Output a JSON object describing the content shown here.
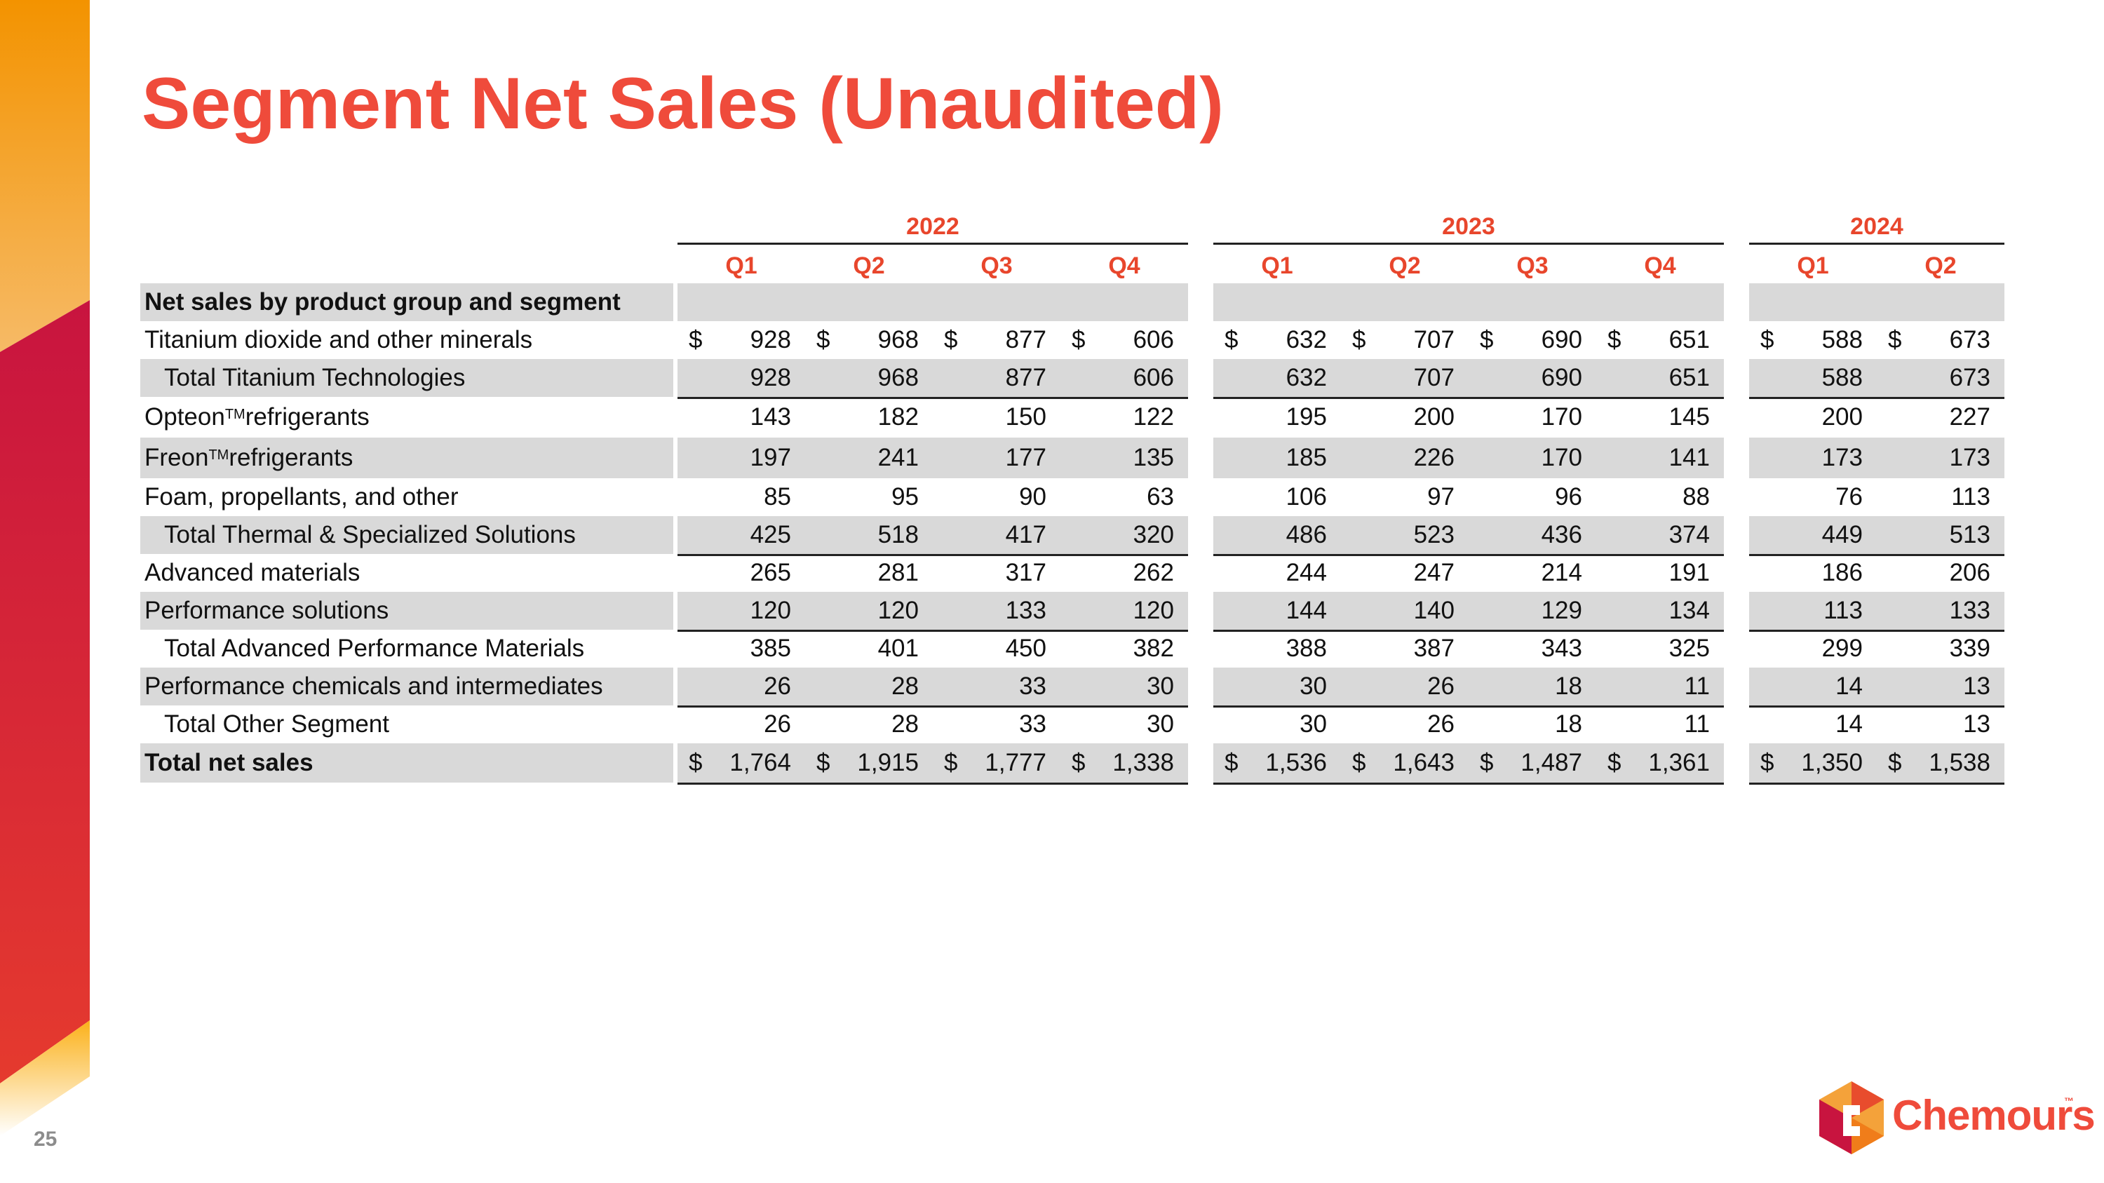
{
  "page": {
    "title": "Segment Net Sales (Unaudited)",
    "page_number": "25"
  },
  "brand": {
    "logo_text": "Chemours",
    "logo_tm": "™",
    "accent_color": "#ef4b3b",
    "icon": "chemours-hexagon-logo"
  },
  "table": {
    "years": [
      {
        "label": "2022",
        "quarters": [
          "Q1",
          "Q2",
          "Q3",
          "Q4"
        ]
      },
      {
        "label": "2023",
        "quarters": [
          "Q1",
          "Q2",
          "Q3",
          "Q4"
        ]
      },
      {
        "label": "2024",
        "quarters": [
          "Q1",
          "Q2"
        ]
      }
    ],
    "currency_symbol": "$",
    "rows": [
      {
        "label": "Net sales by product group and segment",
        "tm": "",
        "label_suffix": "",
        "values": []
      },
      {
        "label": "Titanium dioxide and other minerals",
        "tm": "",
        "label_suffix": "",
        "values": [
          "928",
          "968",
          "877",
          "606",
          "632",
          "707",
          "690",
          "651",
          "588",
          "673"
        ]
      },
      {
        "label": "Total Titanium Technologies",
        "tm": "",
        "label_suffix": "",
        "values": [
          "928",
          "968",
          "877",
          "606",
          "632",
          "707",
          "690",
          "651",
          "588",
          "673"
        ]
      },
      {
        "label": "Opteon",
        "tm": "TM",
        "label_suffix": " refrigerants",
        "values": [
          "143",
          "182",
          "150",
          "122",
          "195",
          "200",
          "170",
          "145",
          "200",
          "227"
        ]
      },
      {
        "label": "Freon",
        "tm": "TM",
        "label_suffix": " refrigerants",
        "values": [
          "197",
          "241",
          "177",
          "135",
          "185",
          "226",
          "170",
          "141",
          "173",
          "173"
        ]
      },
      {
        "label": "Foam, propellants, and other",
        "tm": "",
        "label_suffix": "",
        "values": [
          "85",
          "95",
          "90",
          "63",
          "106",
          "97",
          "96",
          "88",
          "76",
          "113"
        ]
      },
      {
        "label": "Total Thermal & Specialized Solutions",
        "tm": "",
        "label_suffix": "",
        "values": [
          "425",
          "518",
          "417",
          "320",
          "486",
          "523",
          "436",
          "374",
          "449",
          "513"
        ]
      },
      {
        "label": "Advanced materials",
        "tm": "",
        "label_suffix": "",
        "values": [
          "265",
          "281",
          "317",
          "262",
          "244",
          "247",
          "214",
          "191",
          "186",
          "206"
        ]
      },
      {
        "label": "Performance solutions",
        "tm": "",
        "label_suffix": "",
        "values": [
          "120",
          "120",
          "133",
          "120",
          "144",
          "140",
          "129",
          "134",
          "113",
          "133"
        ]
      },
      {
        "label": "Total Advanced Performance Materials",
        "tm": "",
        "label_suffix": "",
        "values": [
          "385",
          "401",
          "450",
          "382",
          "388",
          "387",
          "343",
          "325",
          "299",
          "339"
        ]
      },
      {
        "label": "Performance chemicals and intermediates",
        "tm": "",
        "label_suffix": "",
        "values": [
          "26",
          "28",
          "33",
          "30",
          "30",
          "26",
          "18",
          "11",
          "14",
          "13"
        ]
      },
      {
        "label": "Total Other Segment",
        "tm": "",
        "label_suffix": "",
        "values": [
          "26",
          "28",
          "33",
          "30",
          "30",
          "26",
          "18",
          "11",
          "14",
          "13"
        ]
      },
      {
        "label": "Total net sales",
        "tm": "",
        "label_suffix": "",
        "values": [
          "1,764",
          "1,915",
          "1,777",
          "1,338",
          "1,536",
          "1,643",
          "1,487",
          "1,361",
          "1,350",
          "1,538"
        ]
      }
    ]
  }
}
